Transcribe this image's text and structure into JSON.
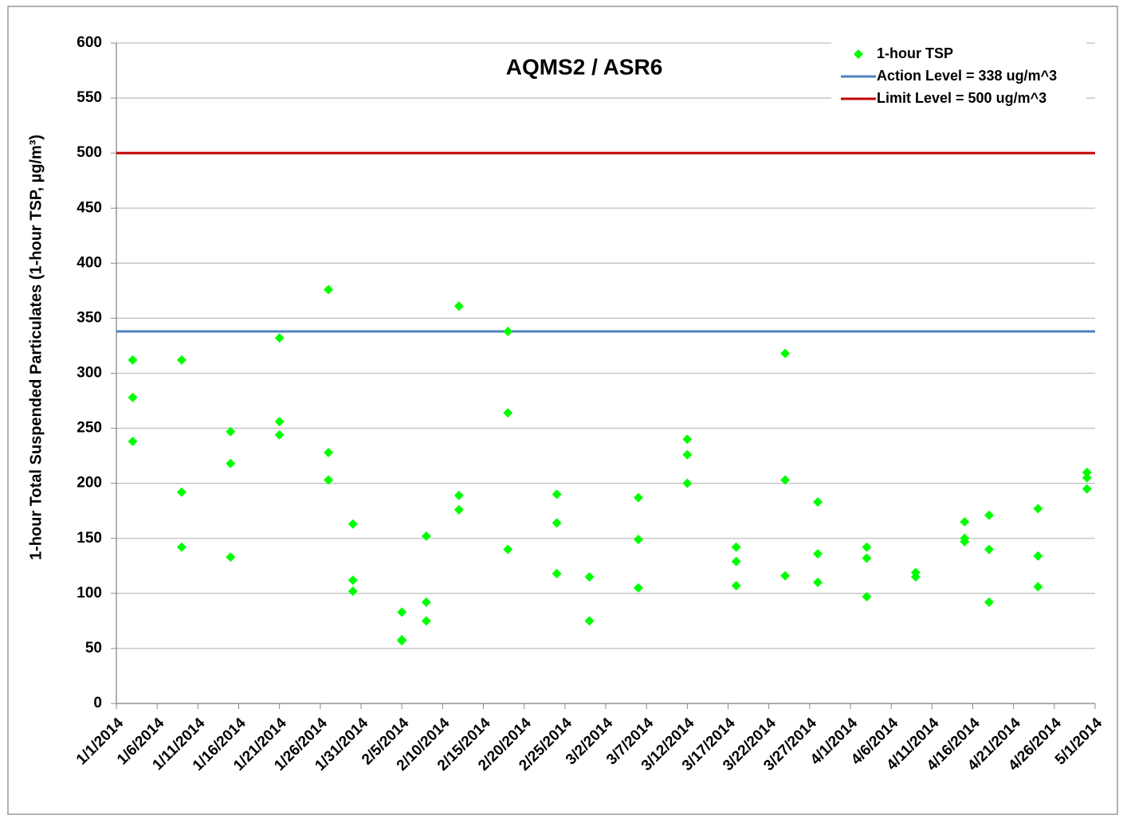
{
  "chart_data": {
    "type": "scatter",
    "title": "AQMS2 / ASR6",
    "y_label": "1-hour Total Suspended Particulates (1-hour TSP, µg/m³)",
    "series": [
      {
        "name": "1-hour TSP",
        "color": "#00ff00",
        "x": [
          "1/3/2014",
          "1/3/2014",
          "1/3/2014",
          "1/9/2014",
          "1/9/2014",
          "1/9/2014",
          "1/15/2014",
          "1/15/2014",
          "1/15/2014",
          "1/21/2014",
          "1/21/2014",
          "1/21/2014",
          "1/27/2014",
          "1/27/2014",
          "1/27/2014",
          "1/30/2014",
          "1/30/2014",
          "1/30/2014",
          "2/5/2014",
          "2/5/2014",
          "2/5/2014",
          "2/8/2014",
          "2/8/2014",
          "2/8/2014",
          "2/12/2014",
          "2/12/2014",
          "2/12/2014",
          "2/18/2014",
          "2/18/2014",
          "2/18/2014",
          "2/24/2014",
          "2/24/2014",
          "2/24/2014",
          "2/28/2014",
          "2/28/2014",
          "3/6/2014",
          "3/6/2014",
          "3/6/2014",
          "3/12/2014",
          "3/12/2014",
          "3/12/2014",
          "3/18/2014",
          "3/18/2014",
          "3/18/2014",
          "3/24/2014",
          "3/24/2014",
          "3/24/2014",
          "3/28/2014",
          "3/28/2014",
          "3/28/2014",
          "4/3/2014",
          "4/3/2014",
          "4/3/2014",
          "4/9/2014",
          "4/9/2014",
          "4/15/2014",
          "4/15/2014",
          "4/15/2014",
          "4/18/2014",
          "4/18/2014",
          "4/18/2014",
          "4/24/2014",
          "4/24/2014",
          "4/24/2014",
          "4/30/2014",
          "4/30/2014",
          "4/30/2014"
        ],
        "values": [
          312,
          278,
          238,
          312,
          192,
          142,
          247,
          218,
          133,
          332,
          256,
          244,
          376,
          228,
          203,
          163,
          112,
          102,
          83,
          58,
          57,
          152,
          92,
          75,
          361,
          189,
          176,
          338,
          264,
          140,
          190,
          164,
          118,
          115,
          75,
          187,
          149,
          105,
          240,
          226,
          200,
          142,
          129,
          107,
          318,
          203,
          116,
          183,
          136,
          110,
          142,
          132,
          97,
          119,
          115,
          165,
          150,
          147,
          171,
          140,
          92,
          177,
          134,
          106,
          210,
          205,
          195
        ]
      }
    ],
    "lines": [
      {
        "name": "Action Level = 338 ug/m^3",
        "value": 338,
        "color": "#4f81bd"
      },
      {
        "name": "Limit Level = 500 ug/m^3",
        "value": 500,
        "color": "#c00000"
      }
    ],
    "xlim": [
      "1/1/2014",
      "5/1/2014"
    ],
    "xticks": [
      "1/1/2014",
      "1/6/2014",
      "1/11/2014",
      "1/16/2014",
      "1/21/2014",
      "1/26/2014",
      "1/31/2014",
      "2/5/2014",
      "2/10/2014",
      "2/15/2014",
      "2/20/2014",
      "2/25/2014",
      "3/2/2014",
      "3/7/2014",
      "3/12/2014",
      "3/17/2014",
      "3/22/2014",
      "3/27/2014",
      "4/1/2014",
      "4/6/2014",
      "4/11/2014",
      "4/16/2014",
      "4/21/2014",
      "4/26/2014",
      "5/1/2014"
    ],
    "ylim": [
      0,
      600
    ],
    "yticks": [
      0,
      50,
      100,
      150,
      200,
      250,
      300,
      350,
      400,
      450,
      500,
      550,
      600
    ],
    "grid": true,
    "legend": "upper right"
  }
}
